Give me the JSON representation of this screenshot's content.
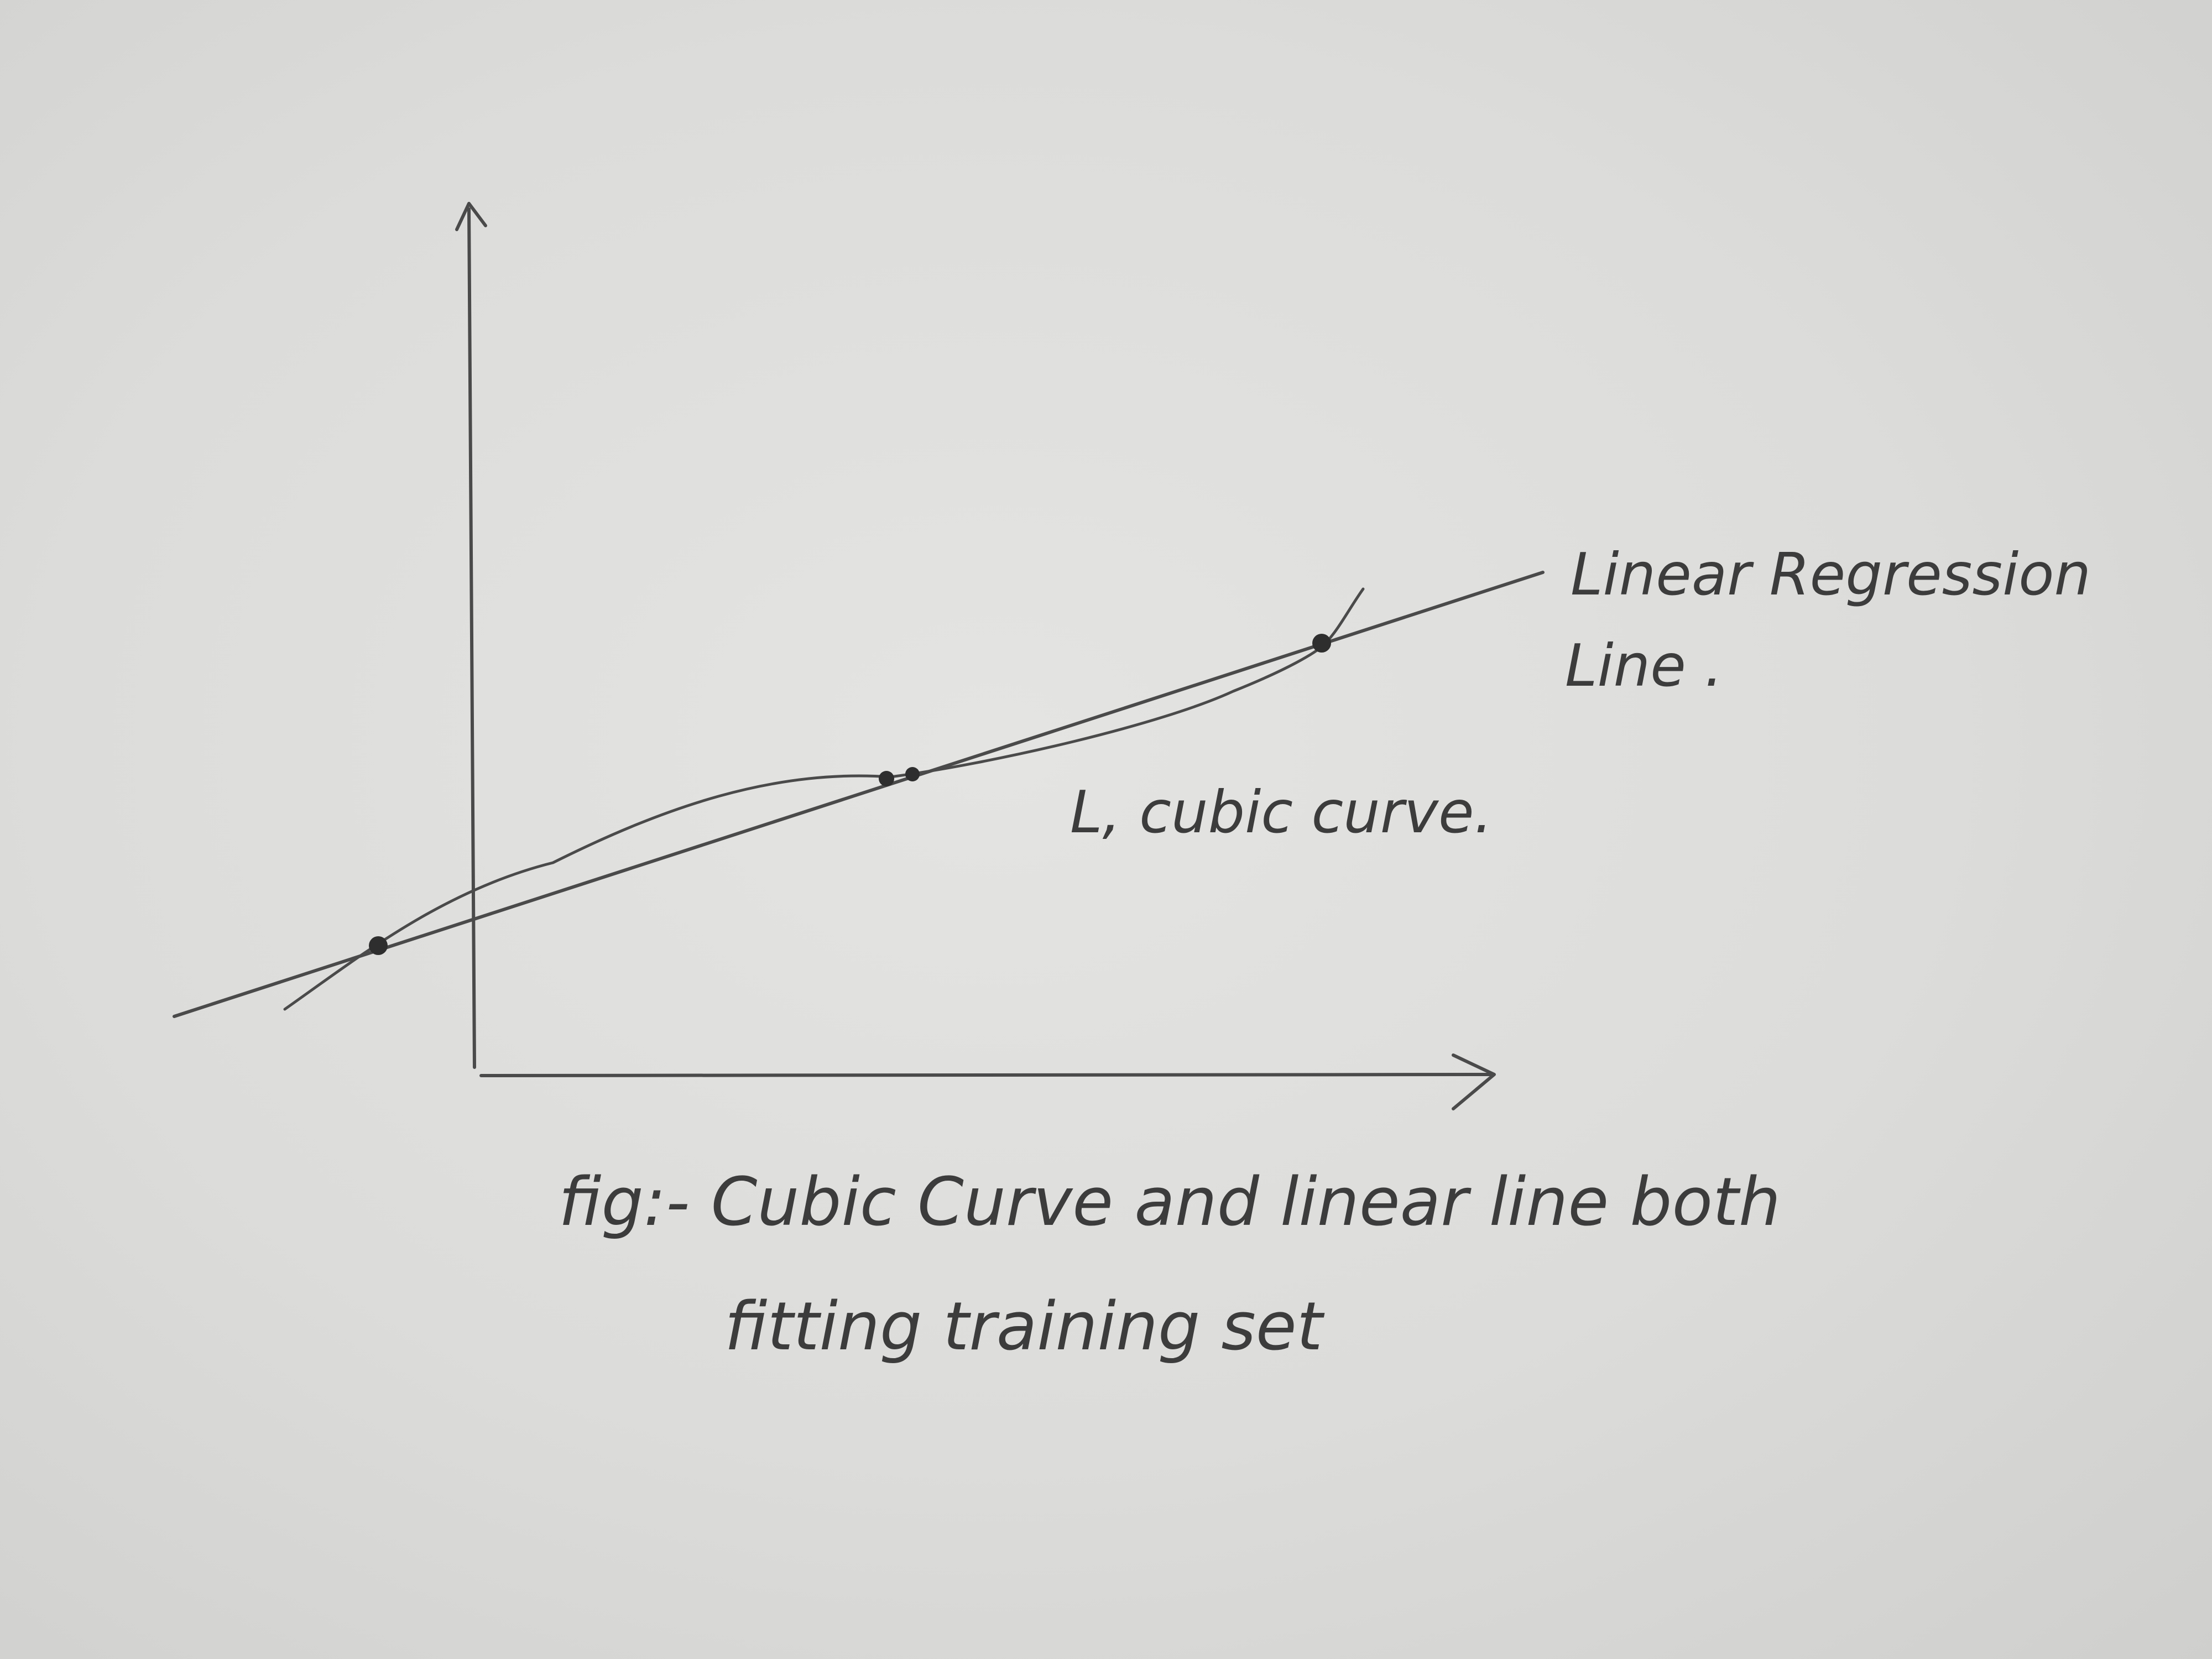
{
  "labels": {
    "regression_line_1": "Linear Regression",
    "regression_line_2": "Line .",
    "cubic_curve": "L, cubic curve."
  },
  "caption": {
    "line1": "fig:- Cubic Curve and linear line both",
    "line2": "fitting training set"
  },
  "colors": {
    "paper": "#dcdcda",
    "pencil": "#4a4a4a"
  }
}
